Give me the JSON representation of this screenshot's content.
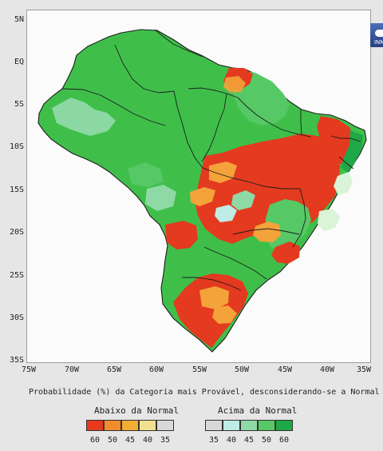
{
  "map": {
    "y_axis_labels": [
      "5N",
      "EQ",
      "5S",
      "10S",
      "15S",
      "20S",
      "25S",
      "30S",
      "35S"
    ],
    "x_axis_labels": [
      "75W",
      "70W",
      "65W",
      "60W",
      "55W",
      "50W",
      "45W",
      "40W",
      "35W"
    ],
    "caption": "Probabilidade (%) da Categoria mais Provável, desconsiderando-se a Normal",
    "logo_text": "INMET"
  },
  "legend": {
    "below_title": "Abaixo da Normal",
    "above_title": "Acima da Normal",
    "below_values": [
      "60",
      "50",
      "45",
      "40",
      "35"
    ],
    "above_values": [
      "35",
      "40",
      "45",
      "50",
      "60"
    ],
    "below_colors": [
      "#e53a1d",
      "#f08c2b",
      "#f1ae33",
      "#f3e08f",
      "#d8d8d8"
    ],
    "above_colors": [
      "#d8d8d8",
      "#bfece4",
      "#8fd9a6",
      "#56c865",
      "#1ea847"
    ]
  },
  "colors": {
    "green": "#3fbf4a",
    "red": "#e43a1f",
    "orange": "#f3a33a",
    "boundary": "#1d1d1d"
  }
}
